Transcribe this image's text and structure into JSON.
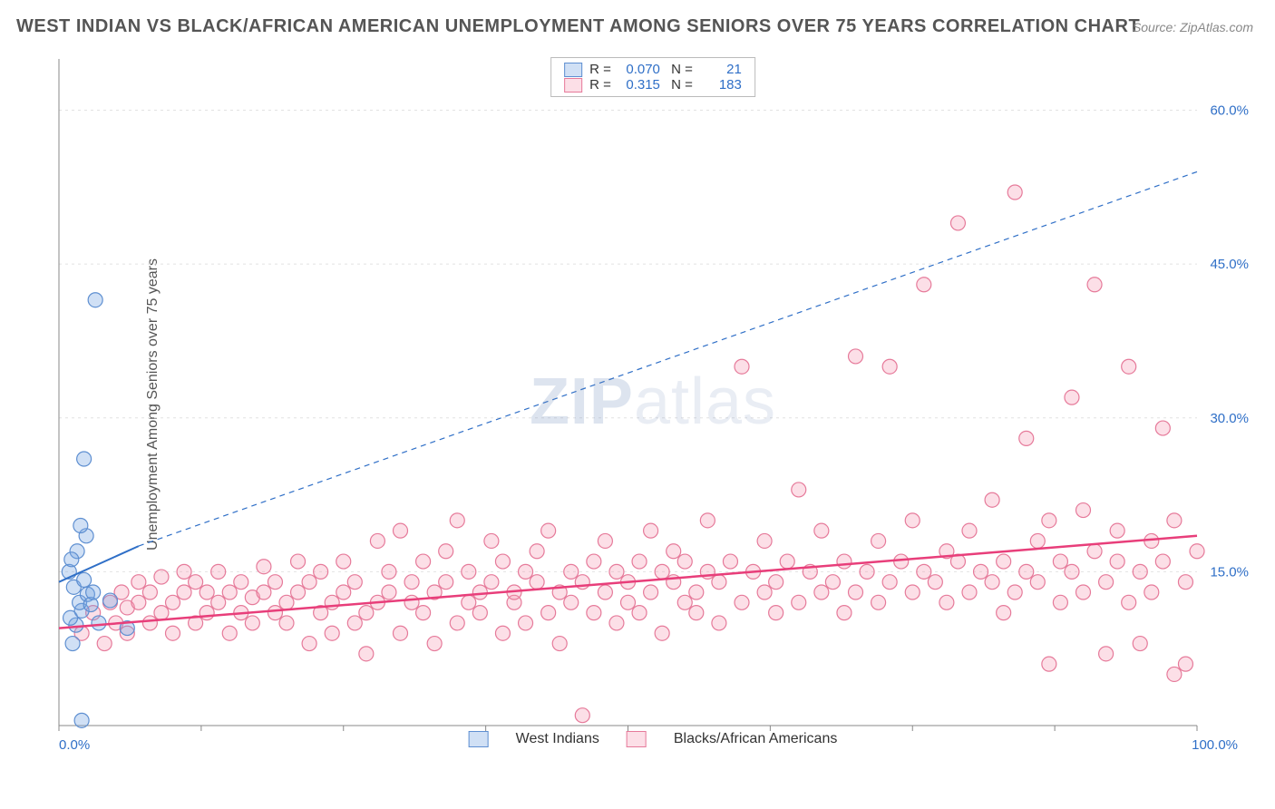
{
  "title": "WEST INDIAN VS BLACK/AFRICAN AMERICAN UNEMPLOYMENT AMONG SENIORS OVER 75 YEARS CORRELATION CHART",
  "source": "Source: ZipAtlas.com",
  "ylabel": "Unemployment Among Seniors over 75 years",
  "watermark_bold": "ZIP",
  "watermark_light": "atlas",
  "chart": {
    "type": "scatter",
    "xlim": [
      0,
      100
    ],
    "ylim": [
      0,
      65
    ],
    "xticks": [
      0,
      12.5,
      25,
      37.5,
      50,
      62.5,
      75,
      87.5,
      100
    ],
    "yticks_labeled": [
      15,
      30,
      45,
      60
    ],
    "xtick_labels": {
      "0": "0.0%",
      "100": "100.0%"
    },
    "ytick_format": "%.1f%%",
    "grid_color": "#e2e2e2",
    "axis_color": "#888888",
    "tick_color": "#888888",
    "label_color": "#2f6fc7",
    "background": "#ffffff",
    "marker_radius": 8,
    "marker_stroke_width": 1.2,
    "series": [
      {
        "name": "West Indians",
        "fill": "rgba(120,165,225,0.35)",
        "stroke": "#5e8fd1",
        "R": "0.070",
        "N": "21",
        "trend": {
          "x1": 0,
          "y1": 14,
          "x2": 7,
          "y2": 17.5,
          "dash_x2": 100,
          "dash_y2": 54,
          "color": "#2f6fc7",
          "width": 2
        },
        "points": [
          [
            1.2,
            8.0
          ],
          [
            1.5,
            9.8
          ],
          [
            1.0,
            10.5
          ],
          [
            2.0,
            11.2
          ],
          [
            1.8,
            12.0
          ],
          [
            2.5,
            12.8
          ],
          [
            1.3,
            13.5
          ],
          [
            2.2,
            14.2
          ],
          [
            0.9,
            15.0
          ],
          [
            2.8,
            11.8
          ],
          [
            3.5,
            10.0
          ],
          [
            1.6,
            17.0
          ],
          [
            1.1,
            16.2
          ],
          [
            2.4,
            18.5
          ],
          [
            1.9,
            19.5
          ],
          [
            3.0,
            13.0
          ],
          [
            4.5,
            12.2
          ],
          [
            6.0,
            9.5
          ],
          [
            2.0,
            0.5
          ],
          [
            2.2,
            26.0
          ],
          [
            3.2,
            41.5
          ]
        ]
      },
      {
        "name": "Blacks/African Americans",
        "fill": "rgba(245,150,175,0.30)",
        "stroke": "#e67a9a",
        "R": "0.315",
        "N": "183",
        "trend": {
          "x1": 0,
          "y1": 9.5,
          "x2": 100,
          "y2": 18.5,
          "color": "#e83e7a",
          "width": 2.5
        },
        "points": [
          [
            2,
            9
          ],
          [
            3,
            11
          ],
          [
            4,
            8
          ],
          [
            4.5,
            12
          ],
          [
            5,
            10
          ],
          [
            5.5,
            13
          ],
          [
            6,
            9
          ],
          [
            6,
            11.5
          ],
          [
            7,
            12
          ],
          [
            7,
            14
          ],
          [
            8,
            10
          ],
          [
            8,
            13
          ],
          [
            9,
            11
          ],
          [
            9,
            14.5
          ],
          [
            10,
            12
          ],
          [
            10,
            9
          ],
          [
            11,
            13
          ],
          [
            11,
            15
          ],
          [
            12,
            10
          ],
          [
            12,
            14
          ],
          [
            13,
            11
          ],
          [
            13,
            13
          ],
          [
            14,
            12
          ],
          [
            14,
            15
          ],
          [
            15,
            9
          ],
          [
            15,
            13
          ],
          [
            16,
            11
          ],
          [
            16,
            14
          ],
          [
            17,
            10
          ],
          [
            17,
            12.5
          ],
          [
            18,
            13
          ],
          [
            18,
            15.5
          ],
          [
            19,
            11
          ],
          [
            19,
            14
          ],
          [
            20,
            12
          ],
          [
            20,
            10
          ],
          [
            21,
            13
          ],
          [
            21,
            16
          ],
          [
            22,
            8
          ],
          [
            22,
            14
          ],
          [
            23,
            11
          ],
          [
            23,
            15
          ],
          [
            24,
            12
          ],
          [
            24,
            9
          ],
          [
            25,
            13
          ],
          [
            25,
            16
          ],
          [
            26,
            10
          ],
          [
            26,
            14
          ],
          [
            27,
            11
          ],
          [
            27,
            7
          ],
          [
            28,
            12
          ],
          [
            28,
            18
          ],
          [
            29,
            13
          ],
          [
            29,
            15
          ],
          [
            30,
            9
          ],
          [
            30,
            19
          ],
          [
            31,
            12
          ],
          [
            31,
            14
          ],
          [
            32,
            11
          ],
          [
            32,
            16
          ],
          [
            33,
            13
          ],
          [
            33,
            8
          ],
          [
            34,
            14
          ],
          [
            34,
            17
          ],
          [
            35,
            10
          ],
          [
            35,
            20
          ],
          [
            36,
            12
          ],
          [
            36,
            15
          ],
          [
            37,
            13
          ],
          [
            37,
            11
          ],
          [
            38,
            14
          ],
          [
            38,
            18
          ],
          [
            39,
            9
          ],
          [
            39,
            16
          ],
          [
            40,
            12
          ],
          [
            40,
            13
          ],
          [
            41,
            15
          ],
          [
            41,
            10
          ],
          [
            42,
            14
          ],
          [
            42,
            17
          ],
          [
            43,
            11
          ],
          [
            43,
            19
          ],
          [
            44,
            13
          ],
          [
            44,
            8
          ],
          [
            45,
            15
          ],
          [
            45,
            12
          ],
          [
            46,
            1
          ],
          [
            46,
            14
          ],
          [
            47,
            16
          ],
          [
            47,
            11
          ],
          [
            48,
            13
          ],
          [
            48,
            18
          ],
          [
            49,
            10
          ],
          [
            49,
            15
          ],
          [
            50,
            12
          ],
          [
            50,
            14
          ],
          [
            51,
            16
          ],
          [
            51,
            11
          ],
          [
            52,
            13
          ],
          [
            52,
            19
          ],
          [
            53,
            15
          ],
          [
            53,
            9
          ],
          [
            54,
            14
          ],
          [
            54,
            17
          ],
          [
            55,
            12
          ],
          [
            55,
            16
          ],
          [
            56,
            13
          ],
          [
            56,
            11
          ],
          [
            57,
            15
          ],
          [
            57,
            20
          ],
          [
            58,
            14
          ],
          [
            58,
            10
          ],
          [
            59,
            16
          ],
          [
            60,
            12
          ],
          [
            60,
            35
          ],
          [
            61,
            15
          ],
          [
            62,
            13
          ],
          [
            62,
            18
          ],
          [
            63,
            14
          ],
          [
            63,
            11
          ],
          [
            64,
            16
          ],
          [
            65,
            12
          ],
          [
            65,
            23
          ],
          [
            66,
            15
          ],
          [
            67,
            13
          ],
          [
            67,
            19
          ],
          [
            68,
            14
          ],
          [
            69,
            16
          ],
          [
            69,
            11
          ],
          [
            70,
            13
          ],
          [
            70,
            36
          ],
          [
            71,
            15
          ],
          [
            72,
            12
          ],
          [
            72,
            18
          ],
          [
            73,
            14
          ],
          [
            73,
            35
          ],
          [
            74,
            16
          ],
          [
            75,
            13
          ],
          [
            75,
            20
          ],
          [
            76,
            15
          ],
          [
            76,
            43
          ],
          [
            77,
            14
          ],
          [
            78,
            12
          ],
          [
            78,
            17
          ],
          [
            79,
            16
          ],
          [
            79,
            49
          ],
          [
            80,
            13
          ],
          [
            80,
            19
          ],
          [
            81,
            15
          ],
          [
            82,
            14
          ],
          [
            82,
            22
          ],
          [
            83,
            16
          ],
          [
            83,
            11
          ],
          [
            84,
            13
          ],
          [
            84,
            52
          ],
          [
            85,
            15
          ],
          [
            85,
            28
          ],
          [
            86,
            14
          ],
          [
            86,
            18
          ],
          [
            87,
            6
          ],
          [
            87,
            20
          ],
          [
            88,
            16
          ],
          [
            88,
            12
          ],
          [
            89,
            15
          ],
          [
            89,
            32
          ],
          [
            90,
            13
          ],
          [
            90,
            21
          ],
          [
            91,
            17
          ],
          [
            91,
            43
          ],
          [
            92,
            14
          ],
          [
            92,
            7
          ],
          [
            93,
            16
          ],
          [
            93,
            19
          ],
          [
            94,
            12
          ],
          [
            94,
            35
          ],
          [
            95,
            15
          ],
          [
            95,
            8
          ],
          [
            96,
            18
          ],
          [
            96,
            13
          ],
          [
            97,
            16
          ],
          [
            97,
            29
          ],
          [
            98,
            5
          ],
          [
            98,
            20
          ],
          [
            99,
            14
          ],
          [
            99,
            6
          ],
          [
            100,
            17
          ]
        ]
      }
    ]
  },
  "legend": {
    "series1_label": "West Indians",
    "series2_label": "Blacks/African Americans"
  }
}
